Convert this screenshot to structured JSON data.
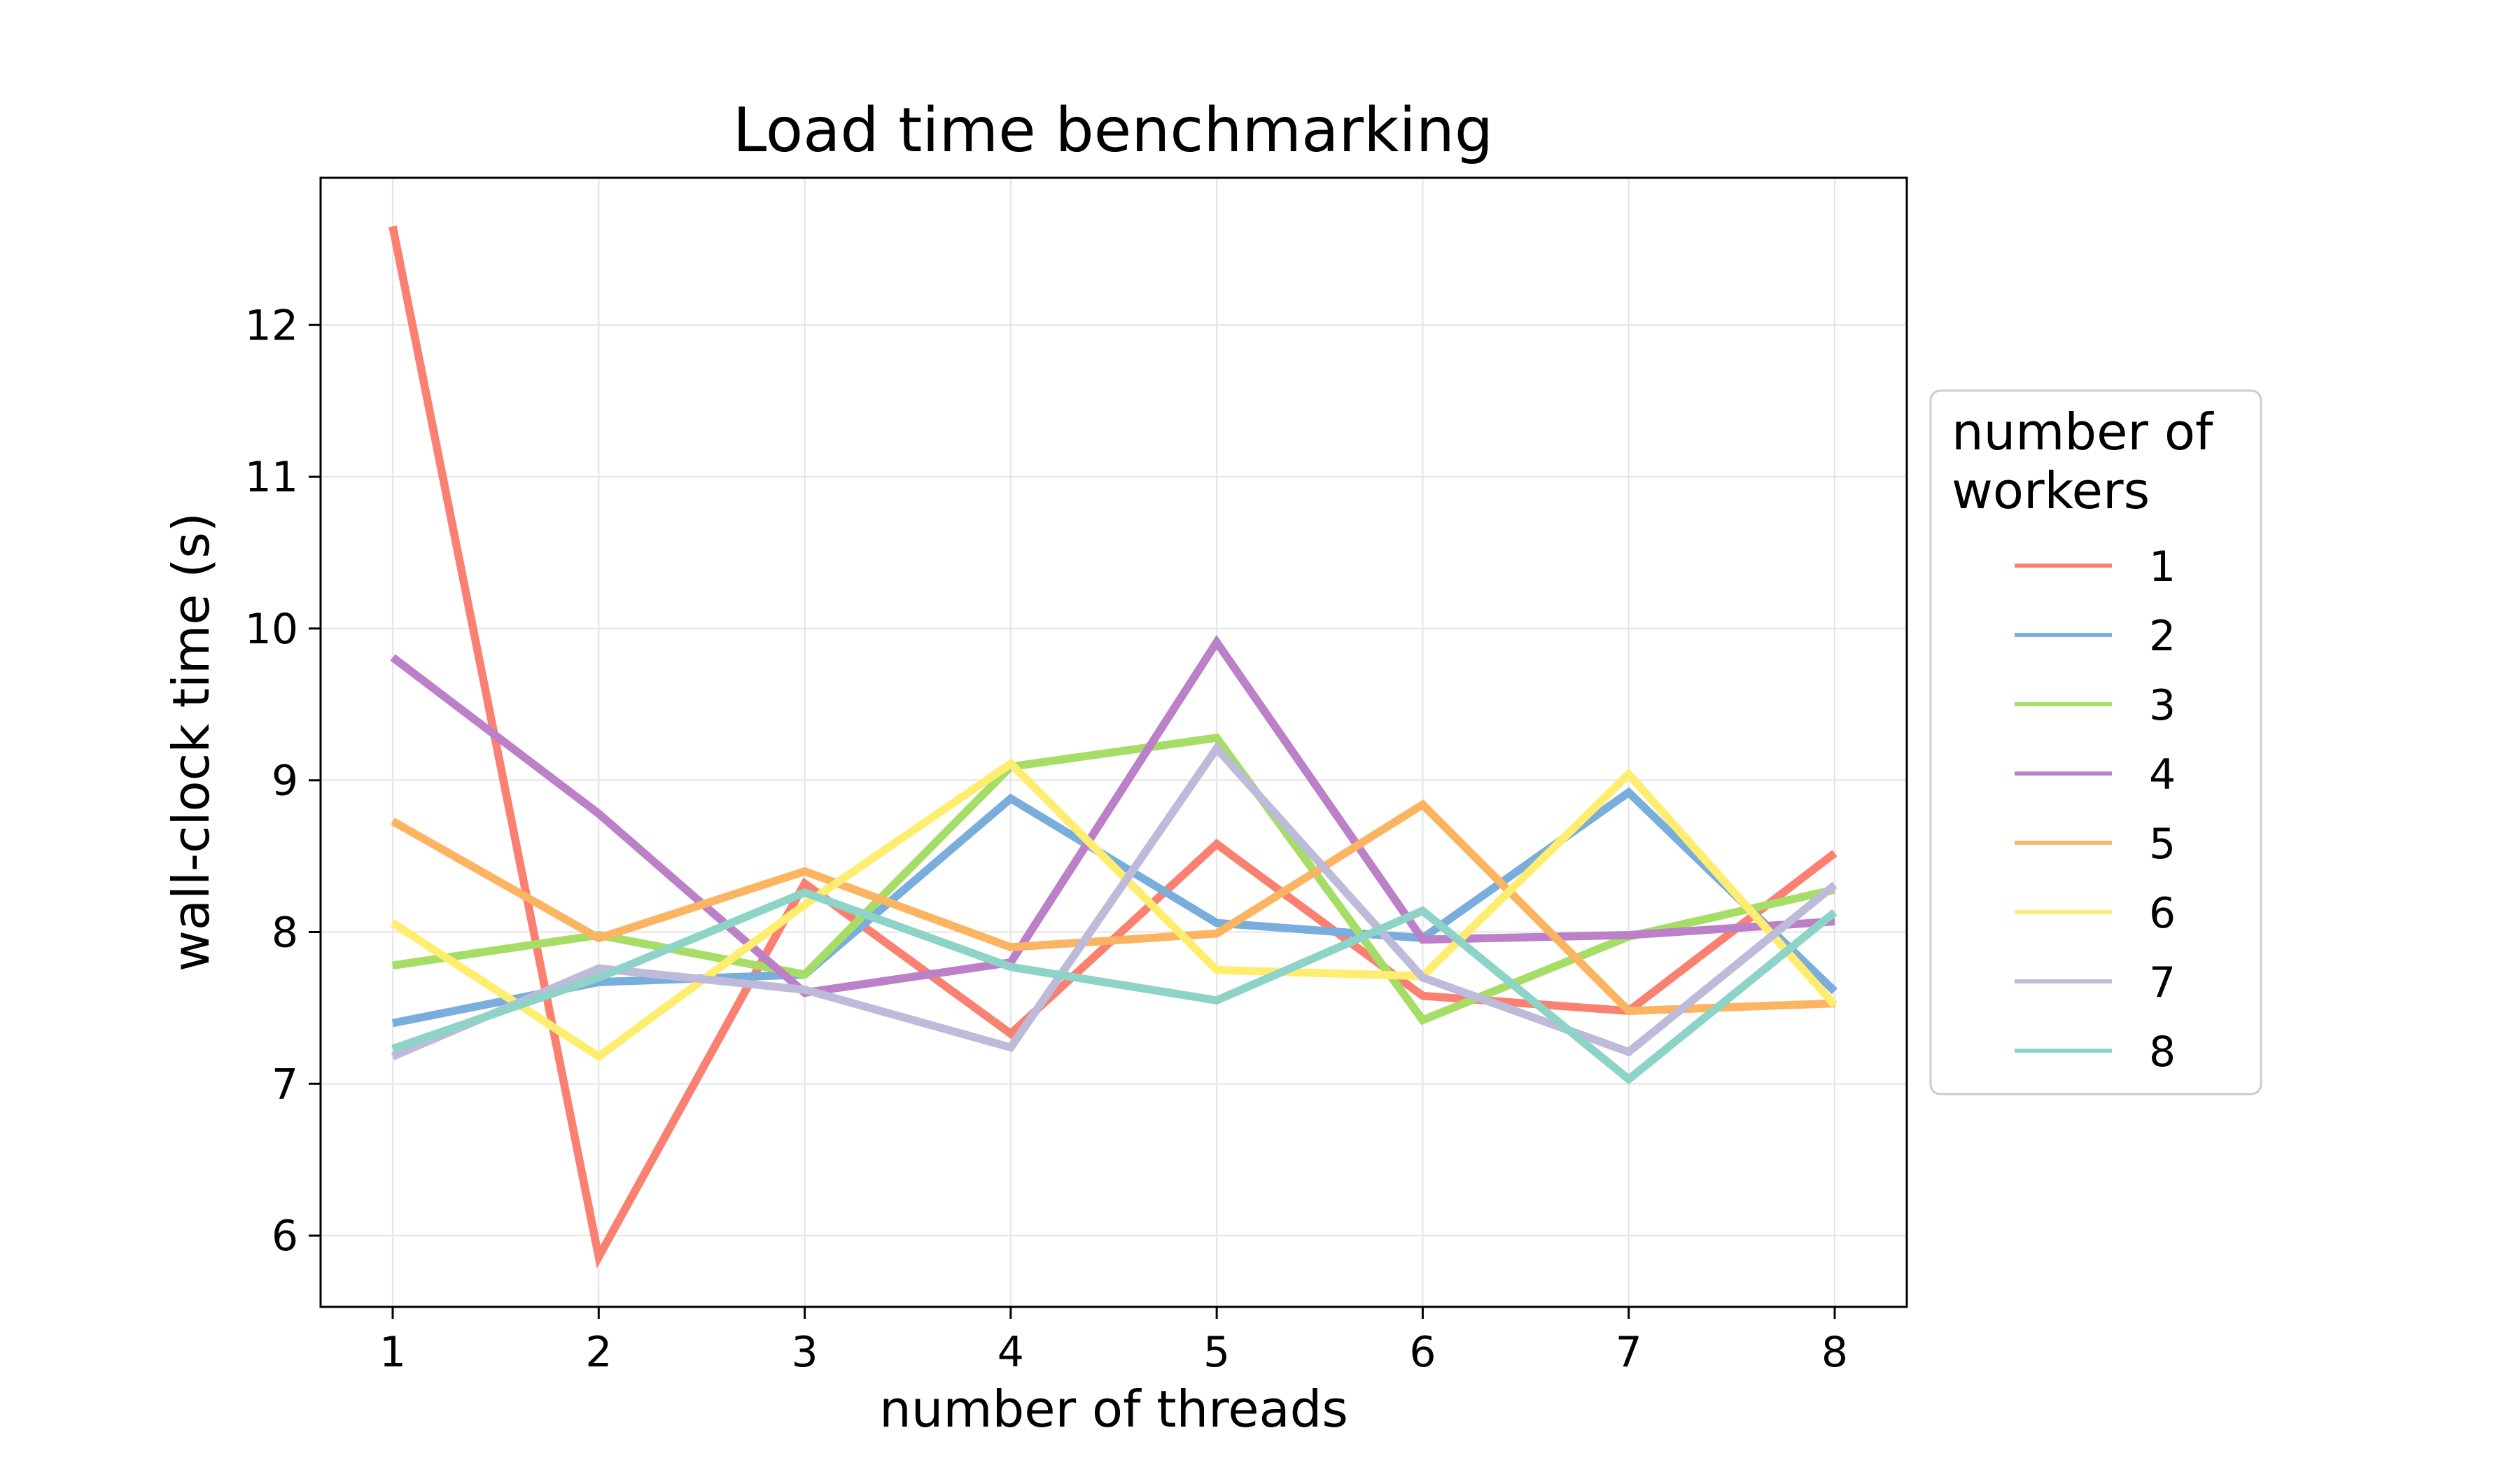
{
  "chart_data": {
    "type": "line",
    "title": "Load time benchmarking",
    "xlabel": "number of threads",
    "ylabel": "wall-clock time (s)",
    "x": [
      1,
      2,
      3,
      4,
      5,
      6,
      7,
      8
    ],
    "xticks": [
      "1",
      "2",
      "3",
      "4",
      "5",
      "6",
      "7",
      "8"
    ],
    "yticks": [
      6,
      7,
      8,
      9,
      10,
      11,
      12
    ],
    "xlim": [
      0.65,
      8.35
    ],
    "ylim": [
      5.53,
      12.97
    ],
    "grid": true,
    "legend": {
      "title": "number of workers",
      "title_lines": [
        "number of",
        "workers"
      ],
      "placement": "right, outside plot"
    },
    "series": [
      {
        "name": "1",
        "color": "#fa8072",
        "values": [
          12.65,
          5.86,
          8.32,
          7.33,
          8.58,
          7.58,
          7.48,
          8.52
        ]
      },
      {
        "name": "2",
        "color": "#79addc",
        "values": [
          7.4,
          7.67,
          7.72,
          8.88,
          8.06,
          7.96,
          8.92,
          7.61
        ]
      },
      {
        "name": "3",
        "color": "#a5dd66",
        "values": [
          7.78,
          7.98,
          7.72,
          9.09,
          9.28,
          7.42,
          7.97,
          8.28
        ]
      },
      {
        "name": "4",
        "color": "#bb80c7",
        "values": [
          9.81,
          8.78,
          7.6,
          7.8,
          9.91,
          7.95,
          7.98,
          8.07
        ]
      },
      {
        "name": "5",
        "color": "#fbb462",
        "values": [
          8.73,
          7.96,
          8.4,
          7.9,
          7.99,
          8.84,
          7.48,
          7.53
        ]
      },
      {
        "name": "6",
        "color": "#ffed6f",
        "values": [
          8.06,
          7.18,
          8.18,
          9.11,
          7.75,
          7.71,
          9.04,
          7.52
        ]
      },
      {
        "name": "7",
        "color": "#bebada",
        "values": [
          7.18,
          7.76,
          7.62,
          7.24,
          9.21,
          7.7,
          7.21,
          8.31
        ]
      },
      {
        "name": "8",
        "color": "#8dd3c7",
        "values": [
          7.23,
          7.7,
          8.26,
          7.77,
          7.55,
          8.14,
          7.03,
          8.13
        ]
      }
    ]
  }
}
